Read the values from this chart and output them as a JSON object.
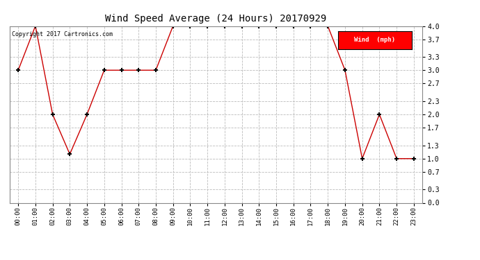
{
  "title": "Wind Speed Average (24 Hours) 20170929",
  "copyright_text": "Copyright 2017 Cartronics.com",
  "legend_label": "Wind  (mph)",
  "legend_bg": "#ff0000",
  "legend_fg": "#ffffff",
  "x_labels": [
    "00:00",
    "01:00",
    "02:00",
    "03:00",
    "04:00",
    "05:00",
    "06:00",
    "07:00",
    "08:00",
    "09:00",
    "10:00",
    "11:00",
    "12:00",
    "13:00",
    "14:00",
    "15:00",
    "16:00",
    "17:00",
    "18:00",
    "19:00",
    "20:00",
    "21:00",
    "22:00",
    "23:00"
  ],
  "y_values": [
    3.0,
    4.0,
    2.0,
    1.1,
    2.0,
    3.0,
    3.0,
    3.0,
    3.0,
    4.0,
    4.0,
    4.0,
    4.0,
    4.0,
    4.0,
    4.0,
    4.0,
    4.0,
    4.0,
    3.0,
    1.0,
    2.0,
    1.0,
    1.0
  ],
  "line_color": "#cc0000",
  "marker_color": "#000000",
  "bg_color": "#ffffff",
  "plot_bg_color": "#ffffff",
  "grid_color": "#bbbbbb",
  "ylim_min": 0.0,
  "ylim_max": 4.0,
  "yticks": [
    0.0,
    0.3,
    0.7,
    1.0,
    1.3,
    1.7,
    2.0,
    2.3,
    2.7,
    3.0,
    3.3,
    3.7,
    4.0
  ]
}
